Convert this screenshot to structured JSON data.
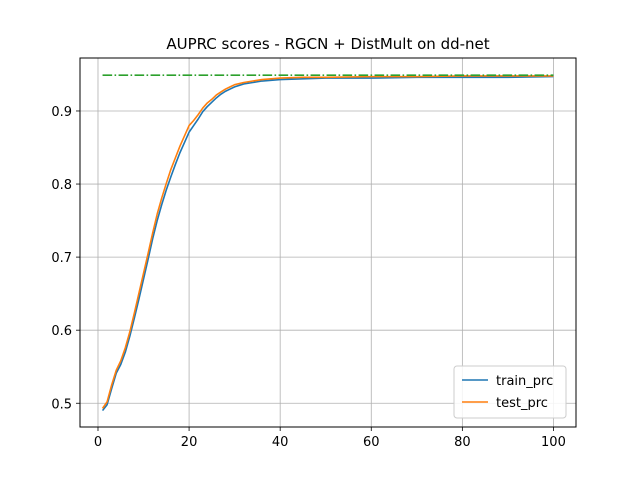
{
  "chart_data": {
    "type": "line",
    "title": "AUPRC scores - RGCN + DistMult on dd-net",
    "xlabel": "",
    "ylabel": "",
    "xlim": [
      -3.95,
      104.95
    ],
    "ylim": [
      0.4675,
      0.9725
    ],
    "xticks": [
      0,
      20,
      40,
      60,
      80,
      100
    ],
    "yticks": [
      0.5,
      0.6,
      0.7,
      0.8,
      0.9
    ],
    "grid": true,
    "legend_position": "lower-right",
    "series": [
      {
        "name": "train_prc",
        "color": "#1f77b4",
        "x": [
          1,
          2,
          3,
          4,
          5,
          6,
          7,
          8,
          9,
          10,
          11,
          12,
          13,
          14,
          15,
          16,
          17,
          18,
          19,
          20,
          21,
          22,
          23,
          24,
          25,
          26,
          27,
          28,
          29,
          30,
          32,
          34,
          36,
          38,
          40,
          45,
          50,
          60,
          70,
          80,
          90,
          100
        ],
        "y": [
          0.49,
          0.498,
          0.52,
          0.541,
          0.553,
          0.57,
          0.592,
          0.617,
          0.643,
          0.67,
          0.697,
          0.725,
          0.75,
          0.772,
          0.792,
          0.81,
          0.827,
          0.843,
          0.857,
          0.871,
          0.88,
          0.889,
          0.899,
          0.906,
          0.912,
          0.918,
          0.923,
          0.927,
          0.93,
          0.933,
          0.937,
          0.939,
          0.941,
          0.942,
          0.943,
          0.944,
          0.945,
          0.945,
          0.946,
          0.946,
          0.946,
          0.947
        ]
      },
      {
        "name": "test_prc",
        "color": "#ff7f0e",
        "x": [
          1,
          2,
          3,
          4,
          5,
          6,
          7,
          8,
          9,
          10,
          11,
          12,
          13,
          14,
          15,
          16,
          17,
          18,
          19,
          20,
          21,
          22,
          23,
          24,
          25,
          26,
          27,
          28,
          29,
          30,
          32,
          34,
          36,
          38,
          40,
          45,
          50,
          60,
          70,
          80,
          90,
          100
        ],
        "y": [
          0.493,
          0.502,
          0.525,
          0.545,
          0.558,
          0.576,
          0.598,
          0.624,
          0.651,
          0.678,
          0.705,
          0.733,
          0.759,
          0.781,
          0.801,
          0.82,
          0.836,
          0.852,
          0.866,
          0.88,
          0.887,
          0.895,
          0.904,
          0.911,
          0.916,
          0.922,
          0.926,
          0.93,
          0.933,
          0.936,
          0.939,
          0.941,
          0.943,
          0.944,
          0.945,
          0.946,
          0.946,
          0.947,
          0.947,
          0.948,
          0.948,
          0.948
        ]
      },
      {
        "name": "",
        "color": "#2ca02c",
        "dash": "dashdot",
        "x": [
          1,
          100
        ],
        "y": [
          0.949,
          0.949
        ]
      }
    ]
  }
}
